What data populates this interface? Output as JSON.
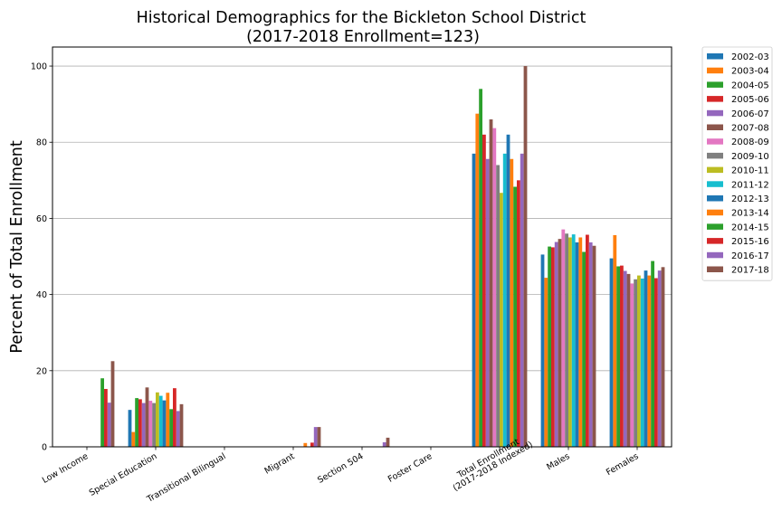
{
  "chart_data": {
    "type": "bar",
    "title": "Historical Demographics for the Bickleton School District",
    "subtitle": "(2017-2018 Enrollment=123)",
    "xlabel": "",
    "ylabel": "Percent of Total Enrollment",
    "ylim": [
      0,
      105
    ],
    "yticks": [
      0,
      20,
      40,
      60,
      80,
      100
    ],
    "grid": "horizontal",
    "legend_position": "outside-right",
    "categories": [
      "Low Income",
      "Special Education",
      "Transitional Bilingual",
      "Migrant",
      "Section 504",
      "Foster Care",
      "Total Enrollment\n(2017-2018 Indexed)",
      "Males",
      "Females"
    ],
    "series": [
      {
        "name": "2002-03",
        "color": "#1f77b4",
        "values": [
          0,
          9.7,
          0,
          0,
          0,
          0,
          77,
          50.5,
          49.5
        ]
      },
      {
        "name": "2003-04",
        "color": "#ff7f0e",
        "values": [
          0,
          3.9,
          0,
          0,
          0,
          0,
          87.5,
          44.4,
          55.6
        ]
      },
      {
        "name": "2004-05",
        "color": "#2ca02c",
        "values": [
          0,
          12.8,
          0,
          0,
          0,
          0,
          94,
          52.6,
          47.4
        ]
      },
      {
        "name": "2005-06",
        "color": "#d62728",
        "values": [
          0,
          12.5,
          0,
          0,
          0,
          0,
          82,
          52.4,
          47.6
        ]
      },
      {
        "name": "2006-07",
        "color": "#9467bd",
        "values": [
          0,
          11.5,
          0,
          0,
          0,
          0,
          75.6,
          53.8,
          46.2
        ]
      },
      {
        "name": "2007-08",
        "color": "#8c564b",
        "values": [
          0,
          15.6,
          0,
          0,
          0,
          0,
          86,
          54.6,
          45.4
        ]
      },
      {
        "name": "2008-09",
        "color": "#e377c2",
        "values": [
          0,
          12.1,
          0,
          0,
          0,
          0,
          83.7,
          57.1,
          42.9
        ]
      },
      {
        "name": "2009-10",
        "color": "#7f7f7f",
        "values": [
          0,
          11.5,
          0,
          0,
          0,
          0,
          74,
          56,
          44
        ]
      },
      {
        "name": "2010-11",
        "color": "#bcbd22",
        "values": [
          0,
          14.3,
          0,
          0,
          0,
          0,
          66.7,
          55,
          45
        ]
      },
      {
        "name": "2011-12",
        "color": "#17becf",
        "values": [
          0,
          13.4,
          0,
          0,
          0,
          0,
          77,
          55.8,
          44.2
        ]
      },
      {
        "name": "2012-13",
        "color": "#1f77b4",
        "values": [
          0,
          12.2,
          0,
          0,
          0,
          0,
          82,
          53.7,
          46.3
        ]
      },
      {
        "name": "2013-14",
        "color": "#ff7f0e",
        "values": [
          0,
          14.2,
          0,
          1,
          0,
          0,
          75.6,
          55,
          45
        ]
      },
      {
        "name": "2014-15",
        "color": "#2ca02c",
        "values": [
          18,
          9.9,
          0,
          0,
          0,
          0,
          68.3,
          51.2,
          48.8
        ]
      },
      {
        "name": "2015-16",
        "color": "#d62728",
        "values": [
          15.2,
          15.4,
          0,
          1.1,
          0,
          0,
          70,
          55.7,
          44.3
        ]
      },
      {
        "name": "2016-17",
        "color": "#9467bd",
        "values": [
          11.6,
          9.4,
          0,
          5.2,
          1.2,
          0,
          77,
          53.7,
          46.3
        ]
      },
      {
        "name": "2017-18",
        "color": "#8c564b",
        "values": [
          22.5,
          11.2,
          0,
          5.2,
          2.4,
          0,
          100,
          52.8,
          47.2
        ]
      }
    ]
  }
}
